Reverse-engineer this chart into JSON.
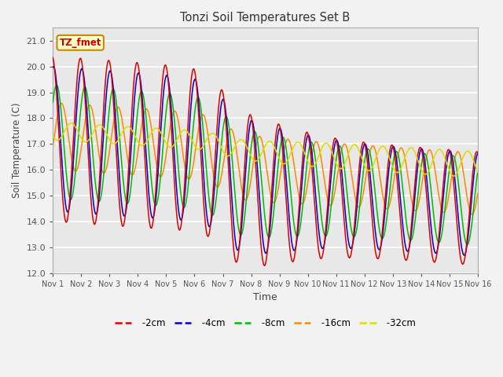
{
  "title": "Tonzi Soil Temperatures Set B",
  "xlabel": "Time",
  "ylabel": "Soil Temperature (C)",
  "ylim": [
    12.0,
    21.5
  ],
  "yticks": [
    12.0,
    13.0,
    14.0,
    15.0,
    16.0,
    17.0,
    18.0,
    19.0,
    20.0,
    21.0
  ],
  "annotation_text": "TZ_fmet",
  "annotation_box_color": "#ffffcc",
  "annotation_box_edge": "#cc8800",
  "annotation_text_color": "#cc0000",
  "colors": {
    "-2cm": "#dd0000",
    "-4cm": "#0000cc",
    "-8cm": "#00bb00",
    "-16cm": "#ff8800",
    "-32cm": "#dddd00"
  },
  "plot_bg": "#e8e8e8",
  "fig_bg": "#f2f2f2",
  "grid_color": "#ffffff",
  "xtick_labels": [
    "Nov 1",
    "Nov 2",
    "Nov 3",
    "Nov 4",
    "Nov 5",
    "Nov 6",
    "Nov 7",
    "Nov 8",
    "Nov 9",
    "Nov 10",
    "Nov 11",
    "Nov 12",
    "Nov 13",
    "Nov 14",
    "Nov 15",
    "Nov 16"
  ],
  "n_days": 15,
  "n_per_day": 48
}
